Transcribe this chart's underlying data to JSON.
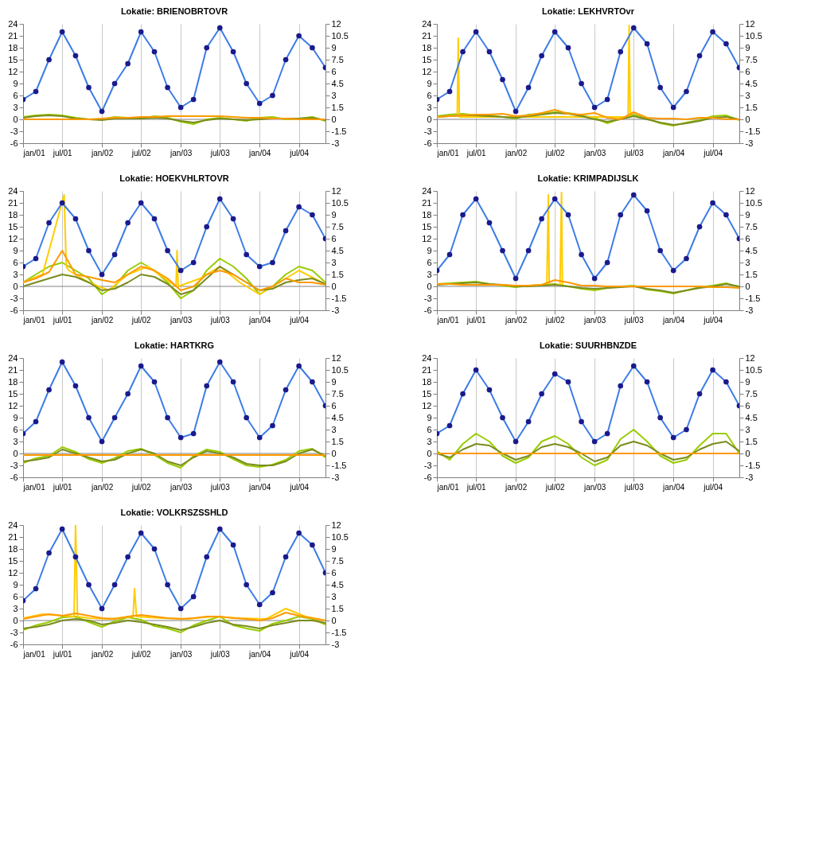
{
  "chart_data": [
    {
      "type": "line",
      "title": "Lokatie: BRIENOBRTOVR",
      "x": [
        "2001-01",
        "2001-03",
        "2001-05",
        "2001-07",
        "2001-09",
        "2001-11",
        "2002-01",
        "2002-03",
        "2002-05",
        "2002-07",
        "2002-09",
        "2002-11",
        "2003-01",
        "2003-03",
        "2003-05",
        "2003-07",
        "2003-09",
        "2003-11",
        "2004-01",
        "2004-03",
        "2004-05",
        "2004-07",
        "2004-09",
        "2004-11"
      ],
      "xlim": [
        "2001-01",
        "2004-11"
      ],
      "xticks": [
        {
          "value": "2001-01",
          "label": "jan/01"
        },
        {
          "value": "2001-07",
          "label": "jul/01"
        },
        {
          "value": "2002-01",
          "label": "jan/02"
        },
        {
          "value": "2002-07",
          "label": "jul/02"
        },
        {
          "value": "2003-01",
          "label": "jan/03"
        },
        {
          "value": "2003-07",
          "label": "jul/03"
        },
        {
          "value": "2004-01",
          "label": "jan/04"
        },
        {
          "value": "2004-07",
          "label": "jul/04"
        }
      ],
      "ylim": [
        -6,
        24
      ],
      "yticks": [
        -6,
        -3,
        0,
        3,
        6,
        9,
        12,
        15,
        18,
        21,
        24
      ],
      "y2lim": [
        -3,
        12
      ],
      "y2ticks": [
        -3,
        -1.5,
        0,
        1.5,
        3,
        4.5,
        6,
        7.5,
        9,
        10.5,
        12
      ],
      "grid": "x",
      "ref_lines": [
        {
          "axis": "y",
          "value": 0,
          "color": "#808080"
        }
      ],
      "series": [
        {
          "type": "scatter",
          "marker": "circle",
          "color": "#1a1a8c",
          "values": [
            5,
            7,
            15,
            22,
            16,
            8,
            2,
            9,
            14,
            22,
            17,
            8,
            3,
            5,
            18,
            23,
            17,
            9,
            4,
            6,
            15,
            21,
            18,
            13
          ]
        },
        {
          "type": "line",
          "color": "#3d7ce6",
          "values": [
            5,
            7,
            15,
            22,
            16,
            8,
            2,
            9,
            14,
            22,
            17,
            8,
            3,
            5,
            18,
            23,
            17,
            9,
            4,
            6,
            15,
            21,
            18,
            13
          ]
        },
        {
          "type": "line",
          "axis": "y2",
          "color": "#99cc00",
          "values": [
            0.3,
            0.5,
            0.6,
            0.5,
            0.2,
            0,
            0,
            0.3,
            0.2,
            0.1,
            0.4,
            0.2,
            -0.3,
            -0.6,
            0,
            0.2,
            0,
            -0.2,
            0.2,
            0.3,
            0,
            0.1,
            0.3,
            -0.2
          ]
        },
        {
          "type": "line",
          "axis": "y2",
          "color": "#7a8c1e",
          "values": [
            0.2,
            0.4,
            0.5,
            0.4,
            0.1,
            0,
            -0.1,
            0.1,
            0.1,
            0.1,
            0.2,
            0.1,
            -0.2,
            -0.4,
            -0.1,
            0.1,
            0,
            -0.1,
            0,
            0.1,
            0.1,
            0.1,
            0.2,
            -0.1
          ]
        },
        {
          "type": "line",
          "axis": "y2",
          "color": "#ff9900",
          "values": [
            0,
            0,
            0,
            0,
            0,
            0,
            0.1,
            0.2,
            0.2,
            0.3,
            0.3,
            0.4,
            0.4,
            0.4,
            0.4,
            0.4,
            0.3,
            0.2,
            0.2,
            0.1,
            0.1,
            0,
            0,
            0
          ]
        }
      ]
    },
    {
      "type": "line",
      "title": "Lokatie: LEKHVRTOvr",
      "x": [
        "2001-01",
        "2001-03",
        "2001-05",
        "2001-07",
        "2001-09",
        "2001-11",
        "2002-01",
        "2002-03",
        "2002-05",
        "2002-07",
        "2002-09",
        "2002-11",
        "2003-01",
        "2003-03",
        "2003-05",
        "2003-07",
        "2003-09",
        "2003-11",
        "2004-01",
        "2004-03",
        "2004-05",
        "2004-07",
        "2004-09",
        "2004-11"
      ],
      "xlim": [
        "2001-01",
        "2004-11"
      ],
      "xticks": [
        {
          "value": "2001-01",
          "label": "jan/01"
        },
        {
          "value": "2001-07",
          "label": "jul/01"
        },
        {
          "value": "2002-01",
          "label": "jan/02"
        },
        {
          "value": "2002-07",
          "label": "jul/02"
        },
        {
          "value": "2003-01",
          "label": "jan/03"
        },
        {
          "value": "2003-07",
          "label": "jul/03"
        },
        {
          "value": "2004-01",
          "label": "jan/04"
        },
        {
          "value": "2004-07",
          "label": "jul/04"
        }
      ],
      "ylim": [
        -6,
        24
      ],
      "yticks": [
        -6,
        -3,
        0,
        3,
        6,
        9,
        12,
        15,
        18,
        21,
        24
      ],
      "y2lim": [
        -3,
        12
      ],
      "y2ticks": [
        -3,
        -1.5,
        0,
        1.5,
        3,
        4.5,
        6,
        7.5,
        9,
        10.5,
        12
      ],
      "grid": "x",
      "ref_lines": [
        {
          "axis": "y",
          "value": 0,
          "color": "#808080"
        }
      ],
      "series": [
        {
          "type": "scatter",
          "marker": "circle",
          "color": "#1a1a8c",
          "values": [
            5,
            7,
            17,
            22,
            17,
            10,
            2,
            8,
            16,
            22,
            18,
            9,
            3,
            5,
            17,
            23,
            19,
            8,
            3,
            7,
            16,
            22,
            19,
            13
          ]
        },
        {
          "type": "line",
          "color": "#3d7ce6",
          "values": [
            5,
            7,
            17,
            22,
            17,
            10,
            2,
            8,
            16,
            22,
            18,
            9,
            3,
            5,
            17,
            23,
            19,
            8,
            3,
            7,
            16,
            22,
            19,
            13
          ]
        },
        {
          "type": "line",
          "axis": "y2",
          "color": "#99cc00",
          "values": [
            0.4,
            0.6,
            0.7,
            0.5,
            0.5,
            0.3,
            0.1,
            0.6,
            0.7,
            0.9,
            0.8,
            0.5,
            0.2,
            -0.5,
            0.1,
            0.6,
            0.1,
            -0.5,
            -0.8,
            -0.4,
            -0.1,
            0.4,
            0.5,
            -0.1
          ]
        },
        {
          "type": "line",
          "axis": "y2",
          "color": "#ffcc00",
          "x": [
            "2001-04-05",
            "2001-04-10",
            "2001-04-15",
            "2003-06-05",
            "2003-06-10",
            "2003-06-15"
          ],
          "values": [
            0.3,
            10.2,
            0.3,
            0.3,
            11.8,
            0.3
          ]
        },
        {
          "type": "line",
          "axis": "y2",
          "color": "#7a8c1e",
          "values": [
            0.3,
            0.4,
            0.5,
            0.5,
            0.4,
            0.3,
            0.2,
            0.4,
            0.6,
            0.8,
            0.7,
            0.4,
            0,
            -0.3,
            0,
            0.4,
            0,
            -0.4,
            -0.7,
            -0.5,
            -0.2,
            0.2,
            0.3,
            0
          ]
        },
        {
          "type": "line",
          "axis": "y2",
          "color": "#ff9900",
          "values": [
            0.3,
            0.4,
            0.5,
            0.6,
            0.6,
            0.7,
            0.4,
            0.5,
            0.8,
            1.2,
            0.7,
            0.6,
            0.8,
            0.2,
            0,
            0.9,
            0.2,
            0.1,
            0.1,
            0,
            0.2,
            0.2,
            0,
            0
          ]
        }
      ]
    },
    {
      "type": "line",
      "title": "Lokatie: HOEKVHLRTOVR",
      "x": [
        "2001-01",
        "2001-03",
        "2001-05",
        "2001-07",
        "2001-09",
        "2001-11",
        "2002-01",
        "2002-03",
        "2002-05",
        "2002-07",
        "2002-09",
        "2002-11",
        "2003-01",
        "2003-03",
        "2003-05",
        "2003-07",
        "2003-09",
        "2003-11",
        "2004-01",
        "2004-03",
        "2004-05",
        "2004-07",
        "2004-09",
        "2004-11"
      ],
      "xlim": [
        "2001-01",
        "2004-11"
      ],
      "xticks": [
        {
          "value": "2001-01",
          "label": "jan/01"
        },
        {
          "value": "2001-07",
          "label": "jul/01"
        },
        {
          "value": "2002-01",
          "label": "jan/02"
        },
        {
          "value": "2002-07",
          "label": "jul/02"
        },
        {
          "value": "2003-01",
          "label": "jan/03"
        },
        {
          "value": "2003-07",
          "label": "jul/03"
        },
        {
          "value": "2004-01",
          "label": "jan/04"
        },
        {
          "value": "2004-07",
          "label": "jul/04"
        }
      ],
      "ylim": [
        -6,
        24
      ],
      "yticks": [
        -6,
        -3,
        0,
        3,
        6,
        9,
        12,
        15,
        18,
        21,
        24
      ],
      "y2lim": [
        -3,
        12
      ],
      "y2ticks": [
        -3,
        -1.5,
        0,
        1.5,
        3,
        4.5,
        6,
        7.5,
        9,
        10.5,
        12
      ],
      "grid": "x",
      "ref_lines": [
        {
          "axis": "y",
          "value": 0,
          "color": "#808080"
        }
      ],
      "series": [
        {
          "type": "scatter",
          "marker": "circle",
          "color": "#1a1a8c",
          "values": [
            5,
            7,
            16,
            21,
            17,
            9,
            3,
            8,
            16,
            21,
            17,
            9,
            4,
            6,
            15,
            22,
            17,
            8,
            5,
            6,
            14,
            20,
            18,
            12
          ]
        },
        {
          "type": "line",
          "color": "#3d7ce6",
          "values": [
            5,
            7,
            16,
            21,
            17,
            9,
            3,
            8,
            16,
            21,
            17,
            9,
            4,
            6,
            15,
            22,
            17,
            8,
            5,
            6,
            14,
            20,
            18,
            12
          ]
        },
        {
          "type": "line",
          "axis": "y2",
          "color": "#99cc00",
          "values": [
            0.5,
            1.5,
            2.5,
            3,
            2,
            1,
            -1,
            0,
            2,
            3,
            2,
            0.5,
            -1.5,
            -0.5,
            2,
            3.5,
            2.5,
            1,
            -1,
            0,
            1.5,
            2.5,
            2,
            0.5
          ]
        },
        {
          "type": "line",
          "axis": "y2",
          "color": "#ffcc00",
          "x": [
            "2001-01",
            "2001-04",
            "2001-07-10",
            "2001-07-20",
            "2001-08",
            "2001-11",
            "2002-02",
            "2002-05",
            "2002-08",
            "2002-12-10",
            "2002-12-15",
            "2002-12-20",
            "2003-04",
            "2003-07",
            "2003-10",
            "2004-01",
            "2004-04",
            "2004-07",
            "2004-11"
          ],
          "values": [
            0.5,
            1.5,
            11.5,
            2.5,
            2,
            0.5,
            -0.5,
            1.5,
            2.5,
            0,
            4.5,
            0,
            1,
            2.5,
            0.5,
            -1,
            0.5,
            2,
            0.3
          ]
        },
        {
          "type": "line",
          "axis": "y2",
          "color": "#7a8c1e",
          "values": [
            0,
            0.5,
            1,
            1.5,
            1.2,
            0.5,
            -0.5,
            -0.3,
            0.5,
            1.5,
            1.2,
            0.3,
            -1,
            -0.5,
            1,
            2.5,
            1.5,
            0.5,
            -0.5,
            -0.3,
            0.5,
            0.8,
            1,
            0.3
          ]
        },
        {
          "type": "line",
          "axis": "y2",
          "color": "#ff9900",
          "values": [
            0.5,
            1,
            1.8,
            4.5,
            1.5,
            1.2,
            0.8,
            0.5,
            1.5,
            2.5,
            2,
            1,
            -0.5,
            0,
            1.5,
            2,
            1.5,
            0.5,
            -0.5,
            0,
            1,
            0.5,
            0.5,
            0.2
          ]
        }
      ]
    },
    {
      "type": "line",
      "title": "Lokatie: KRIMPADIJSLK",
      "x": [
        "2001-01",
        "2001-03",
        "2001-05",
        "2001-07",
        "2001-09",
        "2001-11",
        "2002-01",
        "2002-03",
        "2002-05",
        "2002-07",
        "2002-09",
        "2002-11",
        "2003-01",
        "2003-03",
        "2003-05",
        "2003-07",
        "2003-09",
        "2003-11",
        "2004-01",
        "2004-03",
        "2004-05",
        "2004-07",
        "2004-09",
        "2004-11"
      ],
      "xlim": [
        "2001-01",
        "2004-11"
      ],
      "xticks": [
        {
          "value": "2001-01",
          "label": "jan/01"
        },
        {
          "value": "2001-07",
          "label": "jul/01"
        },
        {
          "value": "2002-01",
          "label": "jan/02"
        },
        {
          "value": "2002-07",
          "label": "jul/02"
        },
        {
          "value": "2003-01",
          "label": "jan/03"
        },
        {
          "value": "2003-07",
          "label": "jul/03"
        },
        {
          "value": "2004-01",
          "label": "jan/04"
        },
        {
          "value": "2004-07",
          "label": "jul/04"
        }
      ],
      "ylim": [
        -6,
        24
      ],
      "yticks": [
        -6,
        -3,
        0,
        3,
        6,
        9,
        12,
        15,
        18,
        21,
        24
      ],
      "y2lim": [
        -3,
        12
      ],
      "y2ticks": [
        -3,
        -1.5,
        0,
        1.5,
        3,
        4.5,
        6,
        7.5,
        9,
        10.5,
        12
      ],
      "grid": "x",
      "ref_lines": [
        {
          "axis": "y",
          "value": 0,
          "color": "#808080"
        }
      ],
      "series": [
        {
          "type": "scatter",
          "marker": "circle",
          "color": "#1a1a8c",
          "values": [
            4,
            8,
            18,
            22,
            16,
            9,
            2,
            9,
            17,
            22,
            18,
            8,
            2,
            6,
            18,
            23,
            19,
            9,
            4,
            7,
            15,
            21,
            18,
            12
          ]
        },
        {
          "type": "line",
          "color": "#3d7ce6",
          "values": [
            4,
            8,
            18,
            22,
            16,
            9,
            2,
            9,
            17,
            22,
            18,
            8,
            2,
            6,
            18,
            23,
            19,
            9,
            4,
            7,
            15,
            21,
            18,
            12
          ]
        },
        {
          "type": "line",
          "axis": "y2",
          "color": "#99cc00",
          "values": [
            0.3,
            0.4,
            0.5,
            0.6,
            0.3,
            0.1,
            -0.1,
            0.1,
            0.2,
            0.3,
            0,
            -0.3,
            -0.5,
            -0.2,
            0,
            0.1,
            -0.4,
            -0.6,
            -0.9,
            -0.5,
            -0.1,
            0.1,
            0.4,
            -0.1
          ]
        },
        {
          "type": "line",
          "axis": "y2",
          "color": "#ffcc00",
          "x": [
            "2002-05-25",
            "2002-06-01",
            "2002-06-05",
            "2002-07-25",
            "2002-08-01",
            "2002-08-05"
          ],
          "values": [
            0.2,
            11.5,
            0.2,
            0.2,
            11.8,
            0.2
          ]
        },
        {
          "type": "line",
          "axis": "y2",
          "color": "#7a8c1e",
          "values": [
            0.2,
            0.3,
            0.4,
            0.5,
            0.3,
            0.2,
            0,
            0,
            0.1,
            0.2,
            0,
            -0.2,
            -0.3,
            -0.2,
            -0.1,
            0,
            -0.3,
            -0.5,
            -0.8,
            -0.5,
            -0.2,
            0,
            0.3,
            0
          ]
        },
        {
          "type": "line",
          "axis": "y2",
          "color": "#ff9900",
          "values": [
            0.3,
            0.3,
            0.2,
            0.2,
            0.2,
            0.2,
            0.1,
            0.1,
            0.2,
            0.8,
            0.5,
            0.1,
            0.1,
            0,
            0,
            0,
            0,
            0,
            0,
            0,
            0,
            -0.1,
            -0.1,
            -0.2
          ]
        }
      ]
    },
    {
      "type": "line",
      "title": "Lokatie: HARTKRG",
      "x": [
        "2001-01",
        "2001-03",
        "2001-05",
        "2001-07",
        "2001-09",
        "2001-11",
        "2002-01",
        "2002-03",
        "2002-05",
        "2002-07",
        "2002-09",
        "2002-11",
        "2003-01",
        "2003-03",
        "2003-05",
        "2003-07",
        "2003-09",
        "2003-11",
        "2004-01",
        "2004-03",
        "2004-05",
        "2004-07",
        "2004-09",
        "2004-11"
      ],
      "xlim": [
        "2001-01",
        "2004-11"
      ],
      "xticks": [
        {
          "value": "2001-01",
          "label": "jan/01"
        },
        {
          "value": "2001-07",
          "label": "jul/01"
        },
        {
          "value": "2002-01",
          "label": "jan/02"
        },
        {
          "value": "2002-07",
          "label": "jul/02"
        },
        {
          "value": "2003-01",
          "label": "jan/03"
        },
        {
          "value": "2003-07",
          "label": "jul/03"
        },
        {
          "value": "2004-01",
          "label": "jan/04"
        },
        {
          "value": "2004-07",
          "label": "jul/04"
        }
      ],
      "ylim": [
        -6,
        24
      ],
      "yticks": [
        -6,
        -3,
        0,
        3,
        6,
        9,
        12,
        15,
        18,
        21,
        24
      ],
      "y2lim": [
        -3,
        12
      ],
      "y2ticks": [
        -3,
        -1.5,
        0,
        1.5,
        3,
        4.5,
        6,
        7.5,
        9,
        10.5,
        12
      ],
      "grid": "x",
      "ref_lines": [
        {
          "axis": "y",
          "value": 0,
          "color": "#808080"
        }
      ],
      "series": [
        {
          "type": "scatter",
          "marker": "circle",
          "color": "#1a1a8c",
          "values": [
            5,
            8,
            16,
            23,
            17,
            9,
            3,
            9,
            15,
            22,
            18,
            9,
            4,
            5,
            17,
            23,
            18,
            9,
            4,
            7,
            16,
            22,
            18,
            12
          ]
        },
        {
          "type": "line",
          "color": "#3d7ce6",
          "values": [
            5,
            8,
            16,
            23,
            17,
            9,
            3,
            9,
            15,
            22,
            18,
            9,
            4,
            5,
            17,
            23,
            18,
            9,
            4,
            7,
            16,
            22,
            18,
            12
          ]
        },
        {
          "type": "line",
          "axis": "y2",
          "color": "#99cc00",
          "values": [
            -1.2,
            -0.6,
            -0.3,
            0.8,
            0.2,
            -0.7,
            -1.2,
            -0.6,
            0.3,
            0.6,
            -0.2,
            -1.2,
            -1.8,
            -0.3,
            0.5,
            0.2,
            -0.7,
            -1.5,
            -1.7,
            -1.4,
            -0.8,
            0.3,
            0.6,
            -0.5
          ]
        },
        {
          "type": "line",
          "axis": "y2",
          "color": "#7a8c1e",
          "values": [
            -1,
            -0.8,
            -0.5,
            0.5,
            0,
            -0.5,
            -1,
            -0.8,
            0,
            0.5,
            0,
            -1,
            -1.5,
            -0.5,
            0.3,
            0,
            -0.5,
            -1.3,
            -1.5,
            -1.5,
            -1,
            0,
            0.5,
            -0.3
          ]
        },
        {
          "type": "line",
          "axis": "y2",
          "color": "#ff9900",
          "values": [
            -0.2,
            -0.2,
            -0.2,
            -0.2,
            -0.2,
            -0.2,
            -0.2,
            -0.2,
            -0.2,
            -0.2,
            -0.2,
            -0.2,
            -0.2,
            -0.2,
            -0.2,
            -0.2,
            -0.2,
            -0.2,
            -0.2,
            -0.2,
            -0.2,
            -0.2,
            -0.2,
            -0.2
          ]
        }
      ]
    },
    {
      "type": "line",
      "title": "Lokatie: SUURHBNZDE",
      "x": [
        "2001-01",
        "2001-03",
        "2001-05",
        "2001-07",
        "2001-09",
        "2001-11",
        "2002-01",
        "2002-03",
        "2002-05",
        "2002-07",
        "2002-09",
        "2002-11",
        "2003-01",
        "2003-03",
        "2003-05",
        "2003-07",
        "2003-09",
        "2003-11",
        "2004-01",
        "2004-03",
        "2004-05",
        "2004-07",
        "2004-09",
        "2004-11"
      ],
      "xlim": [
        "2001-01",
        "2004-11"
      ],
      "xticks": [
        {
          "value": "2001-01",
          "label": "jan/01"
        },
        {
          "value": "2001-07",
          "label": "jul/01"
        },
        {
          "value": "2002-01",
          "label": "jan/02"
        },
        {
          "value": "2002-07",
          "label": "jul/02"
        },
        {
          "value": "2003-01",
          "label": "jan/03"
        },
        {
          "value": "2003-07",
          "label": "jul/03"
        },
        {
          "value": "2004-01",
          "label": "jan/04"
        },
        {
          "value": "2004-07",
          "label": "jul/04"
        }
      ],
      "ylim": [
        -6,
        24
      ],
      "yticks": [
        -6,
        -3,
        0,
        3,
        6,
        9,
        12,
        15,
        18,
        21,
        24
      ],
      "y2lim": [
        -3,
        12
      ],
      "y2ticks": [
        -3,
        -1.5,
        0,
        1.5,
        3,
        4.5,
        6,
        7.5,
        9,
        10.5,
        12
      ],
      "grid": "x",
      "series": [
        {
          "type": "scatter",
          "marker": "circle",
          "color": "#1a1a8c",
          "values": [
            5,
            7,
            15,
            21,
            16,
            9,
            3,
            8,
            15,
            20,
            18,
            8,
            3,
            5,
            17,
            22,
            18,
            9,
            4,
            6,
            15,
            21,
            18,
            12
          ]
        },
        {
          "type": "line",
          "color": "#3d7ce6",
          "values": [
            5,
            7,
            15,
            21,
            16,
            9,
            3,
            8,
            15,
            20,
            18,
            8,
            3,
            5,
            17,
            22,
            18,
            9,
            4,
            6,
            15,
            21,
            18,
            12
          ]
        },
        {
          "type": "line",
          "axis": "y2",
          "color": "#99cc00",
          "values": [
            0.3,
            -0.8,
            1.2,
            2.5,
            1.5,
            -0.3,
            -1.2,
            -0.5,
            1.5,
            2.2,
            1.2,
            -0.5,
            -1.5,
            -0.8,
            1.8,
            3,
            1.5,
            -0.3,
            -1.2,
            -0.8,
            1,
            2.5,
            2.5,
            0
          ]
        },
        {
          "type": "line",
          "axis": "y2",
          "color": "#7a8c1e",
          "values": [
            0,
            -0.5,
            0.5,
            1.2,
            1,
            0,
            -0.8,
            -0.3,
            0.8,
            1.2,
            0.8,
            0,
            -1,
            -0.5,
            1,
            1.5,
            1,
            0,
            -0.8,
            -0.5,
            0.5,
            1.2,
            1.5,
            0.3
          ]
        },
        {
          "type": "line",
          "axis": "y2",
          "color": "#ff9900",
          "values": [
            0,
            0,
            0,
            0,
            0,
            0,
            0,
            0,
            0,
            0,
            0,
            0,
            0,
            0,
            0,
            0,
            0,
            0,
            0,
            0,
            0,
            0,
            0,
            0
          ]
        }
      ]
    },
    {
      "type": "line",
      "title": "Lokatie: VOLKRSZSSHLD",
      "x": [
        "2001-01",
        "2001-03",
        "2001-05",
        "2001-07",
        "2001-09",
        "2001-11",
        "2002-01",
        "2002-03",
        "2002-05",
        "2002-07",
        "2002-09",
        "2002-11",
        "2003-01",
        "2003-03",
        "2003-05",
        "2003-07",
        "2003-09",
        "2003-11",
        "2004-01",
        "2004-03",
        "2004-05",
        "2004-07",
        "2004-09",
        "2004-11"
      ],
      "xlim": [
        "2001-01",
        "2004-11"
      ],
      "xticks": [
        {
          "value": "2001-01",
          "label": "jan/01"
        },
        {
          "value": "2001-07",
          "label": "jul/01"
        },
        {
          "value": "2002-01",
          "label": "jan/02"
        },
        {
          "value": "2002-07",
          "label": "jul/02"
        },
        {
          "value": "2003-01",
          "label": "jan/03"
        },
        {
          "value": "2003-07",
          "label": "jul/03"
        },
        {
          "value": "2004-01",
          "label": "jan/04"
        },
        {
          "value": "2004-07",
          "label": "jul/04"
        }
      ],
      "ylim": [
        -6,
        24
      ],
      "yticks": [
        -6,
        -3,
        0,
        3,
        6,
        9,
        12,
        15,
        18,
        21,
        24
      ],
      "y2lim": [
        -3,
        12
      ],
      "y2ticks": [
        -3,
        -1.5,
        0,
        1.5,
        3,
        4.5,
        6,
        7.5,
        9,
        10.5,
        12
      ],
      "grid": "x",
      "ref_lines": [
        {
          "axis": "y",
          "value": 0,
          "color": "#808080"
        }
      ],
      "series": [
        {
          "type": "scatter",
          "marker": "circle",
          "color": "#1a1a8c",
          "values": [
            5,
            8,
            17,
            23,
            16,
            9,
            3,
            9,
            16,
            22,
            18,
            9,
            3,
            6,
            16,
            23,
            19,
            9,
            4,
            7,
            16,
            22,
            19,
            12
          ]
        },
        {
          "type": "line",
          "color": "#3d7ce6",
          "values": [
            5,
            8,
            17,
            23,
            16,
            9,
            3,
            9,
            16,
            22,
            18,
            9,
            3,
            6,
            16,
            23,
            19,
            9,
            4,
            7,
            16,
            22,
            19,
            12
          ]
        },
        {
          "type": "line",
          "axis": "y2",
          "color": "#99cc00",
          "values": [
            -1.2,
            -0.6,
            -0.2,
            0.4,
            0.5,
            -0.2,
            -0.8,
            -0.1,
            0.4,
            0.1,
            -0.7,
            -1,
            -1.5,
            -0.6,
            0,
            0.5,
            -0.6,
            -1,
            -1.3,
            -0.4,
            0,
            0.5,
            0.2,
            -0.5
          ]
        },
        {
          "type": "line",
          "axis": "y2",
          "color": "#ffcc00",
          "x": [
            "2001-01",
            "2001-04",
            "2001-08-25",
            "2001-09-01",
            "2001-09-10",
            "2001-11",
            "2002-02",
            "2002-05-25",
            "2002-06-01",
            "2002-06-10",
            "2002-10",
            "2003-02",
            "2003-06",
            "2003-10",
            "2004-02",
            "2004-05",
            "2004-08",
            "2004-11"
          ],
          "values": [
            0.3,
            0.8,
            0.5,
            12,
            0.5,
            0.3,
            0.2,
            0.5,
            4,
            0.5,
            0.3,
            0.2,
            0.5,
            0.3,
            0.2,
            1.5,
            0.5,
            0
          ]
        },
        {
          "type": "line",
          "axis": "y2",
          "color": "#7a8c1e",
          "values": [
            -1,
            -0.8,
            -0.5,
            0,
            0.2,
            0,
            -0.5,
            -0.3,
            0,
            -0.2,
            -0.5,
            -0.8,
            -1.2,
            -0.8,
            -0.3,
            0,
            -0.5,
            -0.7,
            -1,
            -0.6,
            -0.3,
            0,
            0,
            -0.3
          ]
        },
        {
          "type": "line",
          "axis": "y2",
          "color": "#ff9900",
          "values": [
            0.2,
            0.5,
            0.8,
            0.6,
            0.9,
            0.6,
            0.3,
            0.2,
            0.5,
            0.7,
            0.5,
            0.3,
            0.2,
            0.3,
            0.5,
            0.5,
            0.3,
            0.2,
            0,
            0.3,
            1,
            0.6,
            0.3,
            0
          ]
        }
      ]
    }
  ]
}
